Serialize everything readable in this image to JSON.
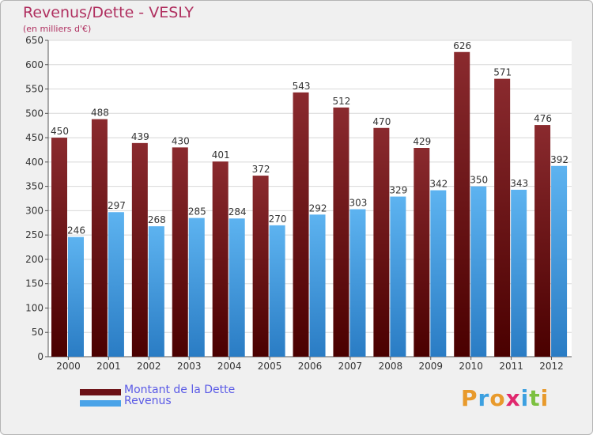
{
  "chart_data": {
    "type": "bar",
    "title": "Revenus/Dette - VESLY",
    "subtitle": "(en milliers d'€)",
    "categories": [
      "2000",
      "2001",
      "2002",
      "2003",
      "2004",
      "2005",
      "2006",
      "2007",
      "2008",
      "2009",
      "2010",
      "2011",
      "2012"
    ],
    "series": [
      {
        "name": "Montant de la Dette",
        "values": [
          450,
          488,
          439,
          430,
          401,
          372,
          543,
          512,
          470,
          429,
          626,
          571,
          476
        ],
        "color": "#6b0f14"
      },
      {
        "name": "Revenus",
        "values": [
          246,
          297,
          268,
          285,
          284,
          270,
          292,
          303,
          329,
          342,
          350,
          343,
          392
        ],
        "color": "#4aa3e8"
      }
    ],
    "ylim": [
      0,
      650
    ],
    "yticks": [
      0,
      50,
      100,
      150,
      200,
      250,
      300,
      350,
      400,
      450,
      500,
      550,
      600,
      650
    ],
    "grid": true,
    "legend": "bottom-left"
  },
  "logo": {
    "letters": [
      "P",
      "r",
      "o",
      "x",
      "i",
      "t",
      "i"
    ],
    "colors": [
      "#e89a2c",
      "#3ca0e0",
      "#e89a2c",
      "#e0286e",
      "#3ca0e0",
      "#7cc040",
      "#e89a2c"
    ]
  }
}
